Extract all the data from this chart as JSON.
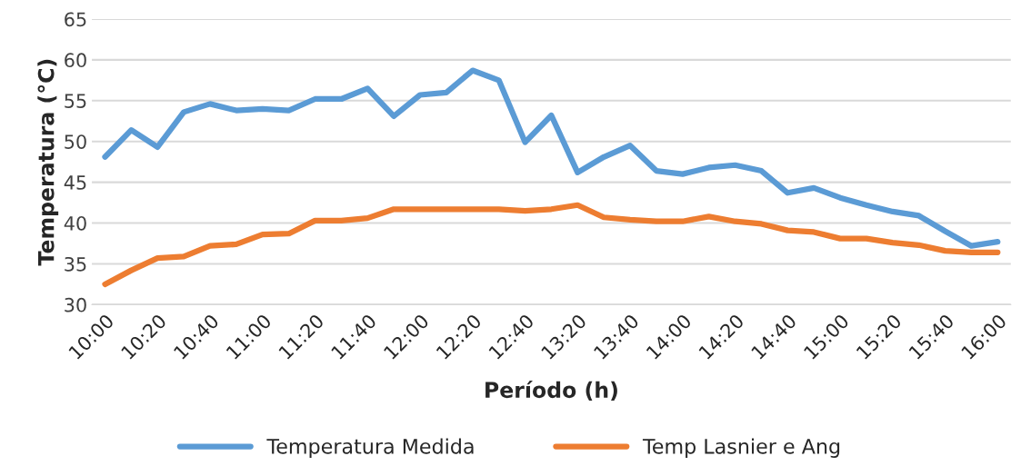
{
  "chart_data": {
    "type": "line",
    "xlabel": "Período (h)",
    "ylabel": "Temperatura (°C)",
    "categories": [
      "10:00",
      null,
      "10:20",
      null,
      "10:40",
      null,
      "11:00",
      null,
      "11:20",
      null,
      "11:40",
      null,
      "12:00",
      null,
      "12:20",
      null,
      "12:40",
      null,
      "13:20",
      null,
      "13:40",
      null,
      "14:00",
      null,
      "14:20",
      null,
      "14:40",
      null,
      "15:00",
      null,
      "15:20",
      null,
      "15:40",
      null,
      "16:00"
    ],
    "series": [
      {
        "name": "Temperatura Medida",
        "color": "#5b9bd5",
        "values": [
          48.1,
          51.4,
          49.3,
          53.6,
          54.6,
          53.8,
          54.0,
          53.8,
          55.2,
          55.2,
          56.5,
          53.1,
          55.7,
          56.0,
          58.7,
          57.5,
          49.9,
          53.2,
          46.2,
          48.1,
          49.5,
          46.4,
          46.0,
          46.8,
          47.1,
          46.4,
          43.7,
          44.3,
          43.1,
          42.2,
          41.4,
          40.9,
          39.0,
          37.2,
          37.7
        ]
      },
      {
        "name": "Temp Lasnier e Ang",
        "color": "#ed7d31",
        "values": [
          32.5,
          34.2,
          35.7,
          35.9,
          37.2,
          37.4,
          38.6,
          38.7,
          40.3,
          40.3,
          40.6,
          41.7,
          41.7,
          41.7,
          41.7,
          41.7,
          41.5,
          41.7,
          42.2,
          40.7,
          40.4,
          40.2,
          40.2,
          40.8,
          40.2,
          39.9,
          39.1,
          38.9,
          38.1,
          38.1,
          37.6,
          37.3,
          36.6,
          36.4,
          36.4
        ]
      }
    ],
    "ylim": [
      30,
      65
    ],
    "yticks": [
      30,
      35,
      40,
      45,
      50,
      55,
      60,
      65
    ],
    "grid": "y",
    "legend": "bottom",
    "marker": "none",
    "line_style": "solid"
  }
}
